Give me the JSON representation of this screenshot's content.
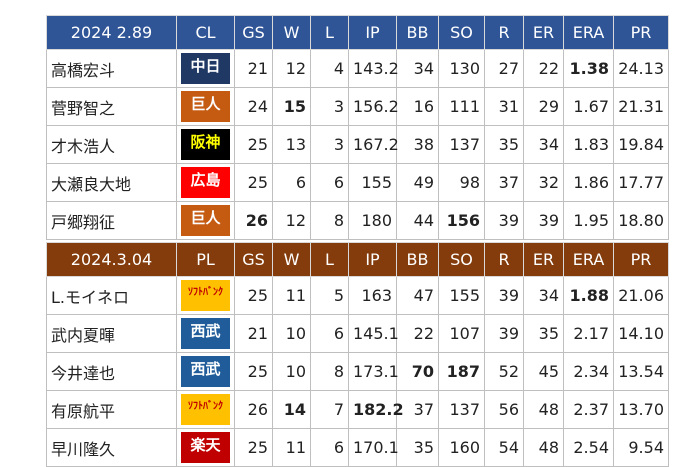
{
  "tables": [
    {
      "header": [
        "2024 2.89",
        "CL",
        "GS",
        "W",
        "L",
        "IP",
        "BB",
        "SO",
        "R",
        "ER",
        "ERA",
        "PR"
      ],
      "header_color": "#2f5597",
      "rows": [
        [
          "高橋宏斗",
          "中日",
          "21",
          "12",
          "4",
          "143.2",
          "34",
          "130",
          "27",
          "22",
          "1.38",
          "24.13"
        ],
        [
          "菅野智之",
          "巨人",
          "24",
          "15",
          "3",
          "156.2",
          "16",
          "111",
          "31",
          "29",
          "1.67",
          "21.31"
        ],
        [
          "才木浩人",
          "阪神",
          "25",
          "13",
          "3",
          "167.2",
          "38",
          "137",
          "35",
          "34",
          "1.83",
          "19.84"
        ],
        [
          "大瀬良大地",
          "広島",
          "25",
          "6",
          "6",
          "155",
          "49",
          "98",
          "37",
          "32",
          "1.86",
          "17.77"
        ],
        [
          "戸郷翔征",
          "巨人",
          "26",
          "12",
          "8",
          "180",
          "44",
          "156",
          "39",
          "39",
          "1.95",
          "18.80"
        ]
      ],
      "row_styles": [
        {
          "badge": "#1f3864",
          "badge_text": "#ffffff",
          "bold": [
            10
          ]
        },
        {
          "badge": "#c55a11",
          "badge_text": "#ffffff",
          "bold": [
            3
          ]
        },
        {
          "badge": "#000000",
          "badge_text": "#ffff00",
          "bold": []
        },
        {
          "badge": "#ff0000",
          "badge_text": "#ffffff",
          "bold": []
        },
        {
          "badge": "#c55a11",
          "badge_text": "#ffffff",
          "bold": [
            2,
            7
          ]
        }
      ]
    },
    {
      "header": [
        "2024.3.04",
        "PL",
        "GS",
        "W",
        "L",
        "IP",
        "BB",
        "SO",
        "R",
        "ER",
        "ERA",
        "PR"
      ],
      "header_color": "#843c0c",
      "rows": [
        [
          "L.モイネロ",
          "ｿﾌﾄﾊﾞﾝｸ",
          "25",
          "11",
          "5",
          "163",
          "47",
          "155",
          "39",
          "34",
          "1.88",
          "21.06"
        ],
        [
          "武内夏暉",
          "西武",
          "21",
          "10",
          "6",
          "145.1",
          "22",
          "107",
          "39",
          "35",
          "2.17",
          "14.10"
        ],
        [
          "今井達也",
          "西武",
          "25",
          "10",
          "8",
          "173.1",
          "70",
          "187",
          "52",
          "45",
          "2.34",
          "13.54"
        ],
        [
          "有原航平",
          "ｿﾌﾄﾊﾞﾝｸ",
          "26",
          "14",
          "7",
          "182.2",
          "37",
          "137",
          "56",
          "48",
          "2.37",
          "13.70"
        ],
        [
          "早川隆久",
          "楽天",
          "25",
          "11",
          "6",
          "170.1",
          "35",
          "160",
          "54",
          "48",
          "2.54",
          "9.54"
        ]
      ],
      "row_styles": [
        {
          "badge": "#ffc000",
          "badge_text": "#c00000",
          "bold": [
            10
          ]
        },
        {
          "badge": "#1f5c99",
          "badge_text": "#ffffff",
          "bold": []
        },
        {
          "badge": "#1f5c99",
          "badge_text": "#ffffff",
          "bold": [
            6,
            7
          ]
        },
        {
          "badge": "#ffc000",
          "badge_text": "#c00000",
          "bold": [
            3,
            5
          ]
        },
        {
          "badge": "#c00000",
          "badge_text": "#ffffff",
          "bold": []
        }
      ]
    }
  ]
}
